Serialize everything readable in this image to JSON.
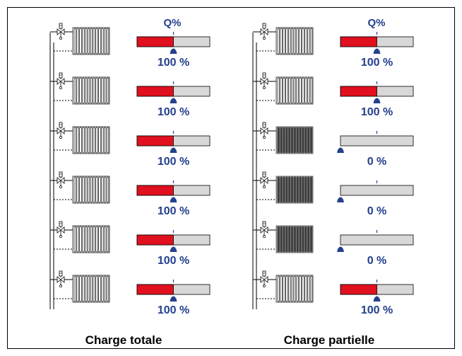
{
  "header_label": "Q%",
  "panels": [
    {
      "caption": "Charge totale",
      "rows": [
        {
          "level": 1.0,
          "label": "100 %"
        },
        {
          "level": 1.0,
          "label": "100 %"
        },
        {
          "level": 1.0,
          "label": "100 %"
        },
        {
          "level": 1.0,
          "label": "100 %"
        },
        {
          "level": 1.0,
          "label": "100 %"
        },
        {
          "level": 1.0,
          "label": "100 %"
        }
      ]
    },
    {
      "caption": "Charge partielle",
      "rows": [
        {
          "level": 1.0,
          "label": "100 %"
        },
        {
          "level": 1.0,
          "label": "100 %"
        },
        {
          "level": 0.0,
          "label": "0 %"
        },
        {
          "level": 0.0,
          "label": "0 %"
        },
        {
          "level": 0.0,
          "label": "0 %"
        },
        {
          "level": 1.0,
          "label": "100 %"
        }
      ]
    }
  ],
  "colors": {
    "fill": "#e0101e",
    "track": "#d8d8d8",
    "accent": "#24408e",
    "radiator_on": "#1a1a1a",
    "radiator_off": "#555555"
  },
  "icons": {
    "valve": "thermostatic-valve-icon",
    "radiator": "radiator-icon",
    "pointer": "pointer-icon"
  }
}
